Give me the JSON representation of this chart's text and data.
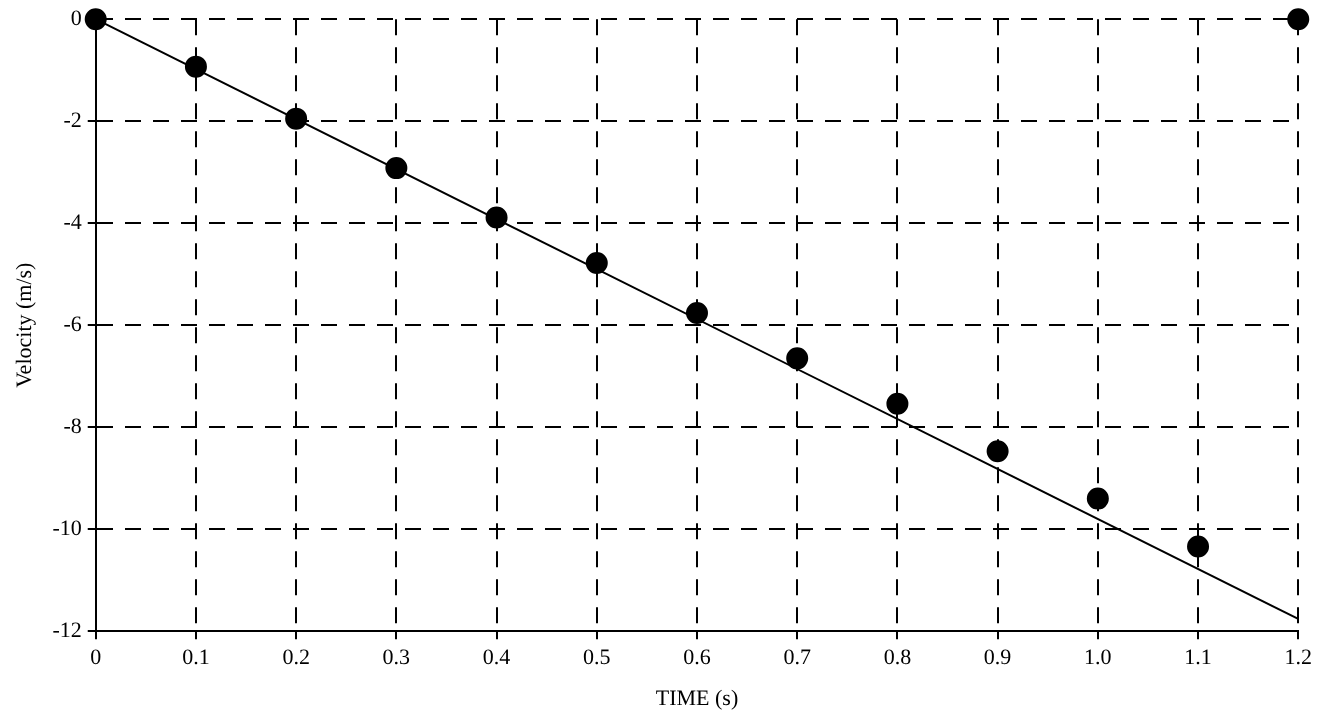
{
  "chart_data": {
    "type": "scatter",
    "xlabel": "TIME (s)",
    "ylabel": "Velocity (m/s)",
    "xlim": [
      0,
      1.2
    ],
    "xticks": [
      0,
      0.1,
      0.2,
      0.3,
      0.4,
      0.5,
      0.6,
      0.7,
      0.8,
      0.9,
      {
        "value": 1,
        "label": "1.0"
      },
      1.1,
      1.2
    ],
    "ylim": [
      -12,
      0
    ],
    "yticks": [
      -12,
      -10,
      -8,
      -6,
      -4,
      -2,
      0
    ],
    "grid": true,
    "legend": false,
    "line_style": "dashed",
    "series": [
      {
        "color": "#000000",
        "marker": "circle",
        "x": [
          0,
          0.1,
          0.2,
          0.3,
          0.4,
          0.5,
          0.6,
          0.7,
          0.8,
          0.9,
          1.0,
          1.1,
          1.2
        ],
        "values": [
          0,
          -0.93,
          -1.95,
          -2.92,
          -3.89,
          -4.78,
          -5.76,
          -6.65,
          -7.54,
          -8.47,
          -9.4,
          -10.34,
          0
        ]
      },
      {
        "type": "line",
        "color": "#000000",
        "marker": "none",
        "line_style": "solid",
        "x": [
          0,
          1.2
        ],
        "values": [
          0,
          -11.76
        ]
      }
    ]
  }
}
